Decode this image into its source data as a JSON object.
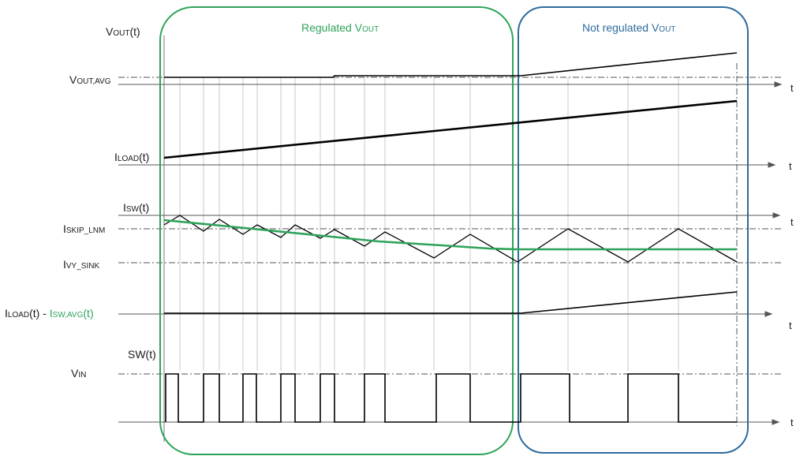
{
  "regions": {
    "regulated": {
      "prefix": "Regulated V",
      "sub": "OUT",
      "color": "#2ea35a"
    },
    "not_regulated": {
      "prefix": "Not regulated V",
      "sub": "OUT",
      "color": "#2e6b9e"
    }
  },
  "labels": {
    "vout_t": {
      "main": "V",
      "sub": "OUT",
      "tail": "(t)"
    },
    "vout_avg": {
      "main": "V",
      "sub": "OUT,AVG"
    },
    "iload_t": {
      "main": "I",
      "sub": "LOAD",
      "tail": "(t)"
    },
    "isw_t": {
      "main": "I",
      "sub": "SW",
      "tail": "(t)"
    },
    "iskip": {
      "main": "I",
      "sub": "SKIP_LNM"
    },
    "ivy": {
      "main": "I",
      "sub": "VY_SINK"
    },
    "diff": {
      "main": "I",
      "sub": "LOAD",
      "mid": "(t) - ",
      "g_main": "I",
      "g_sub": "SW,AVG",
      "g_tail": "(t)"
    },
    "sw_t": {
      "main": "SW(t)"
    },
    "vin": {
      "main": "V",
      "sub": "IN"
    }
  },
  "axis_label": "t",
  "colors": {
    "green": "#2ea35a",
    "blue": "#2e6b9e",
    "black": "#000000"
  }
}
